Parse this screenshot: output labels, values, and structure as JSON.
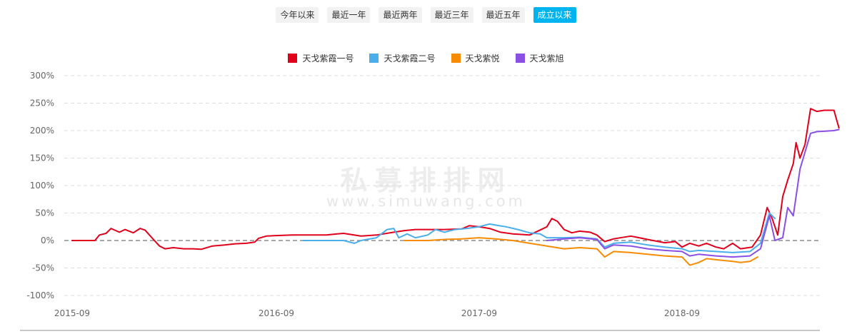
{
  "range_buttons": [
    {
      "label": "今年以来",
      "active": false
    },
    {
      "label": "最近一年",
      "active": false
    },
    {
      "label": "最近两年",
      "active": false
    },
    {
      "label": "最近三年",
      "active": false
    },
    {
      "label": "最近五年",
      "active": false
    },
    {
      "label": "成立以来",
      "active": true
    }
  ],
  "watermark": {
    "cn": "私募排排网",
    "en": "www.simuwang.com"
  },
  "chart_data": {
    "type": "line",
    "title": "",
    "xlabel": "",
    "ylabel": "",
    "y_unit": "%",
    "ylim": [
      -100,
      300
    ],
    "y_ticks": [
      "300%",
      "250%",
      "200%",
      "150%",
      "100%",
      "50%",
      "0%",
      "-50%",
      "-100%"
    ],
    "x_ticks": [
      "2015-09",
      "2016-09",
      "2017-09",
      "2018-09"
    ],
    "grid": true,
    "legend": "top-center",
    "series": [
      {
        "name": "天戈紫霞一号",
        "color": "#e0001b",
        "points": [
          [
            "2015-09-01",
            0
          ],
          [
            "2015-10-01",
            0
          ],
          [
            "2015-10-12",
            0
          ],
          [
            "2015-10-20",
            10
          ],
          [
            "2015-11-01",
            13
          ],
          [
            "2015-11-10",
            22
          ],
          [
            "2015-11-25",
            15
          ],
          [
            "2015-12-05",
            20
          ],
          [
            "2015-12-20",
            14
          ],
          [
            "2016-01-01",
            22
          ],
          [
            "2016-01-10",
            19
          ],
          [
            "2016-01-25",
            2
          ],
          [
            "2016-02-05",
            -10
          ],
          [
            "2016-02-15",
            -15
          ],
          [
            "2016-03-01",
            -13
          ],
          [
            "2016-03-20",
            -15
          ],
          [
            "2016-04-05",
            -15
          ],
          [
            "2016-04-20",
            -16
          ],
          [
            "2016-05-10",
            -10
          ],
          [
            "2016-06-01",
            -8
          ],
          [
            "2016-06-20",
            -6
          ],
          [
            "2016-07-10",
            -5
          ],
          [
            "2016-07-25",
            -3
          ],
          [
            "2016-08-01",
            4
          ],
          [
            "2016-08-15",
            8
          ],
          [
            "2016-09-01",
            9
          ],
          [
            "2016-10-01",
            10
          ],
          [
            "2016-11-01",
            10
          ],
          [
            "2016-12-01",
            10
          ],
          [
            "2016-12-20",
            12
          ],
          [
            "2017-01-01",
            13
          ],
          [
            "2017-02-01",
            8
          ],
          [
            "2017-03-01",
            10
          ],
          [
            "2017-04-01",
            15
          ],
          [
            "2017-04-20",
            18
          ],
          [
            "2017-05-10",
            20
          ],
          [
            "2017-06-01",
            20
          ],
          [
            "2017-07-01",
            20
          ],
          [
            "2017-08-01",
            21
          ],
          [
            "2017-08-15",
            27
          ],
          [
            "2017-09-01",
            25
          ],
          [
            "2017-09-20",
            22
          ],
          [
            "2017-10-10",
            15
          ],
          [
            "2017-11-01",
            12
          ],
          [
            "2017-12-01",
            10
          ],
          [
            "2018-01-01",
            25
          ],
          [
            "2018-01-10",
            40
          ],
          [
            "2018-01-20",
            35
          ],
          [
            "2018-02-01",
            20
          ],
          [
            "2018-02-15",
            14
          ],
          [
            "2018-03-01",
            17
          ],
          [
            "2018-03-20",
            15
          ],
          [
            "2018-04-01",
            10
          ],
          [
            "2018-04-15",
            -2
          ],
          [
            "2018-05-01",
            3
          ],
          [
            "2018-06-01",
            8
          ],
          [
            "2018-07-01",
            2
          ],
          [
            "2018-08-01",
            -4
          ],
          [
            "2018-08-20",
            -2
          ],
          [
            "2018-09-01",
            -12
          ],
          [
            "2018-09-15",
            -5
          ],
          [
            "2018-10-01",
            -10
          ],
          [
            "2018-10-15",
            -5
          ],
          [
            "2018-11-01",
            -12
          ],
          [
            "2018-11-15",
            -15
          ],
          [
            "2018-12-01",
            -5
          ],
          [
            "2018-12-15",
            -15
          ],
          [
            "2019-01-05",
            -12
          ],
          [
            "2019-01-20",
            10
          ],
          [
            "2019-02-01",
            60
          ],
          [
            "2019-02-10",
            40
          ],
          [
            "2019-02-20",
            10
          ],
          [
            "2019-03-01",
            80
          ],
          [
            "2019-03-10",
            110
          ],
          [
            "2019-03-20",
            140
          ],
          [
            "2019-03-25",
            178
          ],
          [
            "2019-04-01",
            150
          ],
          [
            "2019-04-10",
            175
          ],
          [
            "2019-04-20",
            240
          ],
          [
            "2019-05-01",
            235
          ],
          [
            "2019-05-15",
            237
          ],
          [
            "2019-06-01",
            237
          ],
          [
            "2019-06-10",
            205
          ]
        ]
      },
      {
        "name": "天戈紫霞二号",
        "color": "#4aaeeb",
        "points": [
          [
            "2016-10-20",
            0
          ],
          [
            "2017-01-01",
            0
          ],
          [
            "2017-01-20",
            -5
          ],
          [
            "2017-02-01",
            0
          ],
          [
            "2017-03-01",
            5
          ],
          [
            "2017-03-20",
            20
          ],
          [
            "2017-04-01",
            22
          ],
          [
            "2017-04-10",
            5
          ],
          [
            "2017-04-25",
            12
          ],
          [
            "2017-05-10",
            5
          ],
          [
            "2017-06-01",
            10
          ],
          [
            "2017-06-15",
            20
          ],
          [
            "2017-07-01",
            15
          ],
          [
            "2017-07-20",
            20
          ],
          [
            "2017-08-10",
            22
          ],
          [
            "2017-09-01",
            25
          ],
          [
            "2017-09-20",
            30
          ],
          [
            "2017-10-01",
            28
          ],
          [
            "2017-10-20",
            25
          ],
          [
            "2017-11-10",
            20
          ],
          [
            "2017-12-01",
            14
          ],
          [
            "2017-12-20",
            12
          ],
          [
            "2018-01-01",
            5
          ],
          [
            "2018-02-01",
            5
          ],
          [
            "2018-03-01",
            6
          ],
          [
            "2018-04-01",
            3
          ],
          [
            "2018-04-15",
            -12
          ],
          [
            "2018-05-01",
            -5
          ],
          [
            "2018-06-01",
            -3
          ],
          [
            "2018-07-01",
            -8
          ],
          [
            "2018-08-01",
            -12
          ],
          [
            "2018-09-01",
            -15
          ],
          [
            "2018-09-15",
            -20
          ],
          [
            "2018-10-01",
            -18
          ],
          [
            "2018-11-01",
            -20
          ],
          [
            "2018-12-01",
            -22
          ],
          [
            "2019-01-01",
            -20
          ],
          [
            "2019-01-20",
            -5
          ],
          [
            "2019-02-05",
            50
          ],
          [
            "2019-02-15",
            40
          ]
        ]
      },
      {
        "name": "天戈紫悦",
        "color": "#f88b04",
        "points": [
          [
            "2017-04-20",
            0
          ],
          [
            "2017-06-01",
            0
          ],
          [
            "2017-07-01",
            2
          ],
          [
            "2017-08-01",
            3
          ],
          [
            "2017-09-01",
            5
          ],
          [
            "2017-10-01",
            3
          ],
          [
            "2017-11-01",
            0
          ],
          [
            "2017-12-01",
            -5
          ],
          [
            "2018-01-01",
            -10
          ],
          [
            "2018-02-01",
            -15
          ],
          [
            "2018-03-01",
            -13
          ],
          [
            "2018-04-01",
            -15
          ],
          [
            "2018-04-15",
            -30
          ],
          [
            "2018-05-01",
            -20
          ],
          [
            "2018-06-01",
            -22
          ],
          [
            "2018-07-01",
            -25
          ],
          [
            "2018-08-01",
            -28
          ],
          [
            "2018-09-01",
            -30
          ],
          [
            "2018-09-15",
            -45
          ],
          [
            "2018-10-01",
            -40
          ],
          [
            "2018-10-15",
            -33
          ],
          [
            "2018-11-01",
            -35
          ],
          [
            "2018-12-01",
            -38
          ],
          [
            "2018-12-15",
            -40
          ],
          [
            "2019-01-01",
            -38
          ],
          [
            "2019-01-15",
            -30
          ]
        ]
      },
      {
        "name": "天戈紫旭",
        "color": "#8a50e3",
        "points": [
          [
            "2018-01-01",
            0
          ],
          [
            "2018-02-01",
            3
          ],
          [
            "2018-03-01",
            5
          ],
          [
            "2018-04-01",
            2
          ],
          [
            "2018-04-15",
            -15
          ],
          [
            "2018-05-01",
            -8
          ],
          [
            "2018-06-01",
            -10
          ],
          [
            "2018-07-01",
            -15
          ],
          [
            "2018-08-01",
            -18
          ],
          [
            "2018-09-01",
            -20
          ],
          [
            "2018-09-15",
            -28
          ],
          [
            "2018-10-01",
            -25
          ],
          [
            "2018-11-01",
            -28
          ],
          [
            "2018-12-01",
            -30
          ],
          [
            "2019-01-01",
            -28
          ],
          [
            "2019-01-20",
            -15
          ],
          [
            "2019-02-05",
            45
          ],
          [
            "2019-02-15",
            0
          ],
          [
            "2019-03-01",
            5
          ],
          [
            "2019-03-10",
            60
          ],
          [
            "2019-03-20",
            45
          ],
          [
            "2019-04-01",
            130
          ],
          [
            "2019-04-20",
            195
          ],
          [
            "2019-05-01",
            198
          ],
          [
            "2019-06-01",
            200
          ],
          [
            "2019-06-10",
            202
          ]
        ]
      }
    ]
  }
}
